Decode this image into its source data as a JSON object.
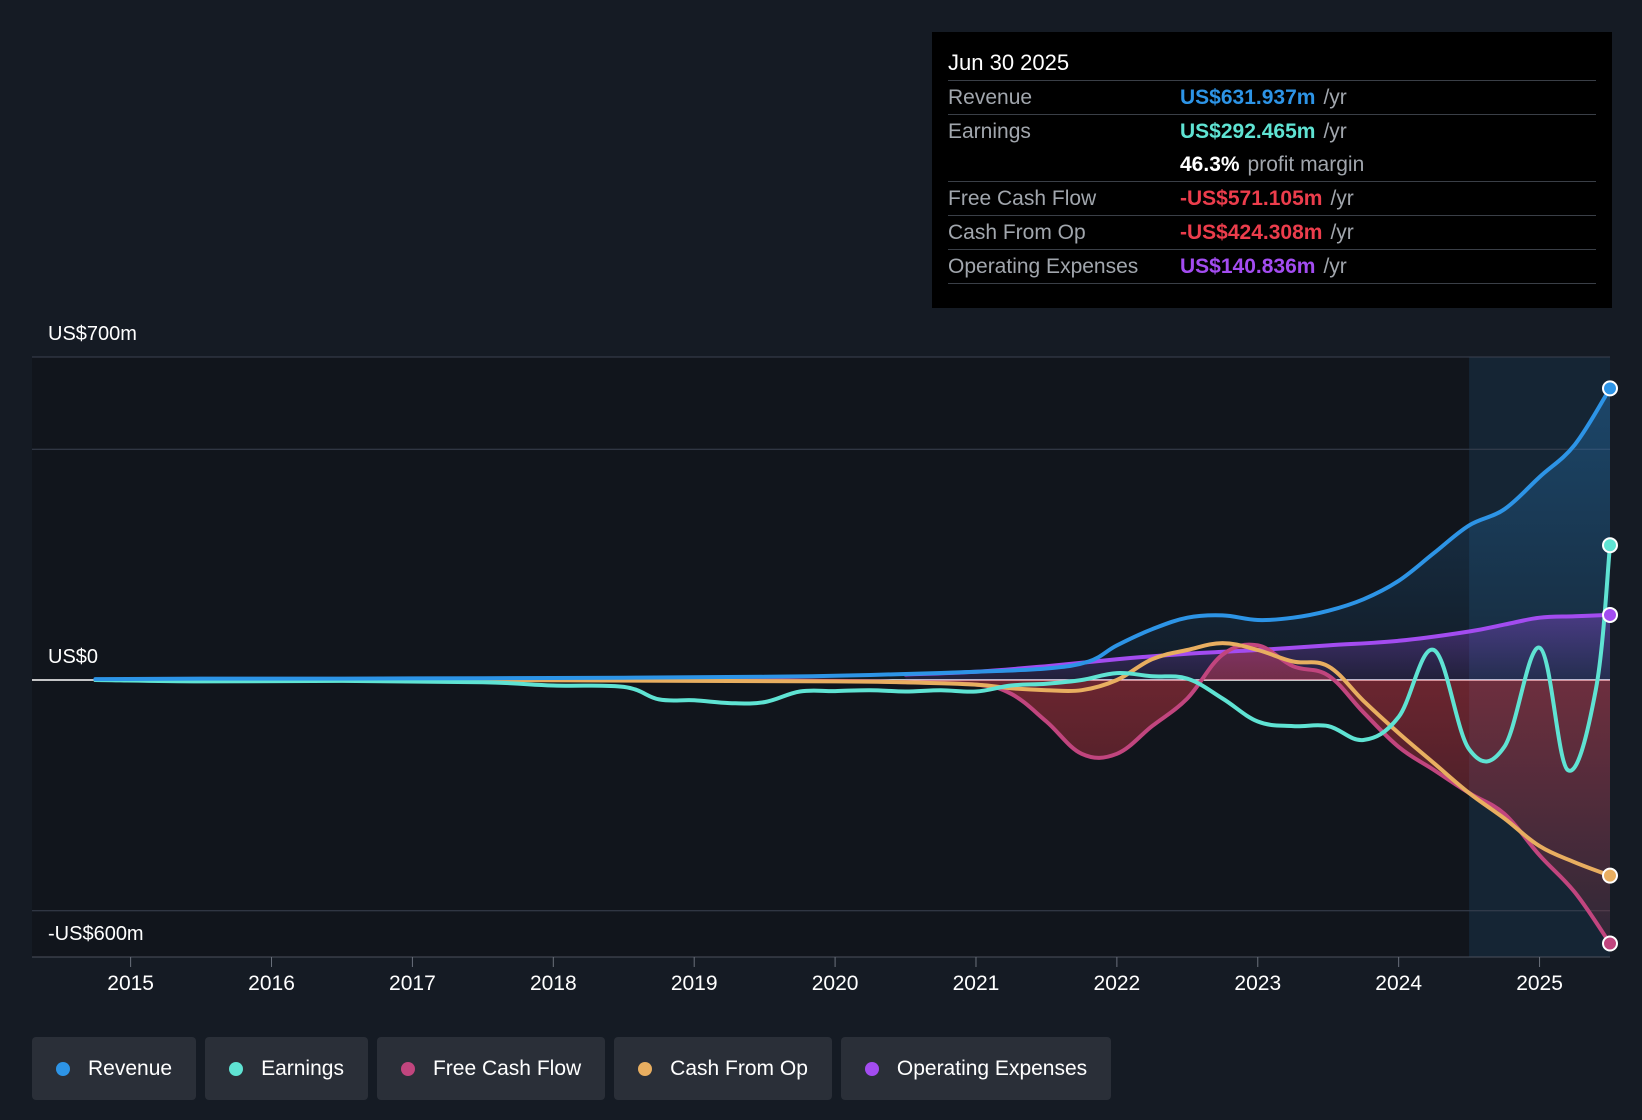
{
  "tooltip": {
    "date": "Jun 30 2025",
    "rows": [
      {
        "label": "Revenue",
        "value": "US$631.937m",
        "unit": "/yr",
        "color": "#2d94e6"
      },
      {
        "label": "Earnings",
        "value": "US$292.465m",
        "unit": "/yr",
        "color": "#5fe3d3"
      },
      {
        "label": "Free Cash Flow",
        "value": "-US$571.105m",
        "unit": "/yr",
        "color": "#ec3d4c"
      },
      {
        "label": "Cash From Op",
        "value": "-US$424.308m",
        "unit": "/yr",
        "color": "#ec3d4c"
      },
      {
        "label": "Operating Expenses",
        "value": "US$140.836m",
        "unit": "/yr",
        "color": "#a34cf0"
      }
    ],
    "profit_margin_value": "46.3%",
    "profit_margin_label": "profit margin"
  },
  "legend": [
    {
      "label": "Revenue",
      "color": "#2d94e6"
    },
    {
      "label": "Earnings",
      "color": "#5fe3d3"
    },
    {
      "label": "Free Cash Flow",
      "color": "#c1457e"
    },
    {
      "label": "Cash From Op",
      "color": "#e8ae60"
    },
    {
      "label": "Operating Expenses",
      "color": "#a34cf0"
    }
  ],
  "chart_data": {
    "type": "line",
    "title": "",
    "xlabel": "",
    "ylabel": "",
    "y_tick_labels": [
      {
        "value": 700,
        "label": "US$700m"
      },
      {
        "value": 0,
        "label": "US$0"
      },
      {
        "value": -600,
        "label": "-US$600m"
      }
    ],
    "ylim": [
      -600,
      700
    ],
    "xlim": [
      2014.3,
      2025.5
    ],
    "x_ticks": [
      "2015",
      "2016",
      "2017",
      "2018",
      "2019",
      "2020",
      "2021",
      "2022",
      "2023",
      "2024",
      "2025"
    ],
    "gridlines_y": [
      700,
      500,
      0,
      -500
    ],
    "highlight_from": 2024.5,
    "series": [
      {
        "name": "Revenue",
        "color": "#2d94e6",
        "x": [
          2014.75,
          2015.5,
          2016.5,
          2017.5,
          2018.5,
          2019.5,
          2020.0,
          2020.5,
          2021.0,
          2021.5,
          2021.8,
          2022.0,
          2022.25,
          2022.5,
          2022.75,
          2023.0,
          2023.25,
          2023.5,
          2023.75,
          2024.0,
          2024.25,
          2024.5,
          2024.75,
          2025.0,
          2025.25,
          2025.5
        ],
        "y": [
          2,
          3,
          3,
          4,
          5,
          7,
          9,
          13,
          18,
          25,
          40,
          75,
          110,
          135,
          140,
          130,
          135,
          150,
          175,
          215,
          275,
          335,
          370,
          440,
          510,
          632
        ]
      },
      {
        "name": "Earnings",
        "color": "#5fe3d3",
        "x": [
          2014.75,
          2015.5,
          2016.5,
          2017.5,
          2018.0,
          2018.5,
          2018.75,
          2019.0,
          2019.25,
          2019.5,
          2019.75,
          2020.0,
          2020.25,
          2020.5,
          2020.75,
          2021.0,
          2021.25,
          2021.5,
          2021.75,
          2022.0,
          2022.25,
          2022.5,
          2022.75,
          2023.0,
          2023.25,
          2023.5,
          2023.75,
          2024.0,
          2024.25,
          2024.5,
          2024.75,
          2025.0,
          2025.2,
          2025.4,
          2025.5
        ],
        "y": [
          0,
          -3,
          -2,
          -5,
          -12,
          -15,
          -42,
          -44,
          -50,
          -48,
          -25,
          -24,
          -22,
          -25,
          -22,
          -25,
          -12,
          -8,
          0,
          15,
          8,
          3,
          -40,
          -90,
          -100,
          -100,
          -130,
          -80,
          65,
          -150,
          -145,
          70,
          -195,
          -20,
          292
        ]
      },
      {
        "name": "Free Cash Flow",
        "color": "#c1457e",
        "x": [
          2014.75,
          2016.0,
          2017.5,
          2019.0,
          2020.0,
          2020.5,
          2021.0,
          2021.25,
          2021.5,
          2021.75,
          2022.0,
          2022.25,
          2022.5,
          2022.75,
          2023.0,
          2023.25,
          2023.5,
          2023.75,
          2024.0,
          2024.25,
          2024.5,
          2024.75,
          2025.0,
          2025.25,
          2025.5
        ],
        "y": [
          0,
          0,
          0,
          0,
          -2,
          -5,
          -10,
          -30,
          -90,
          -160,
          -160,
          -100,
          -40,
          55,
          75,
          30,
          10,
          -70,
          -145,
          -195,
          -245,
          -290,
          -380,
          -460,
          -571
        ]
      },
      {
        "name": "Cash From Op",
        "color": "#e8ae60",
        "x": [
          2014.75,
          2016.0,
          2017.5,
          2019.0,
          2020.0,
          2020.5,
          2021.0,
          2021.25,
          2021.5,
          2021.75,
          2022.0,
          2022.25,
          2022.5,
          2022.75,
          2023.0,
          2023.25,
          2023.5,
          2023.75,
          2024.0,
          2024.25,
          2024.5,
          2024.75,
          2025.0,
          2025.25,
          2025.5
        ],
        "y": [
          0,
          0,
          0,
          -2,
          -3,
          -5,
          -10,
          -18,
          -22,
          -22,
          0,
          45,
          65,
          80,
          65,
          40,
          30,
          -45,
          -115,
          -180,
          -245,
          -300,
          -360,
          -395,
          -424
        ]
      },
      {
        "name": "Operating Expenses",
        "color": "#a34cf0",
        "x": [
          2020.5,
          2021.0,
          2021.5,
          2022.0,
          2022.5,
          2023.0,
          2023.5,
          2024.0,
          2024.5,
          2024.75,
          2025.0,
          2025.25,
          2025.5
        ],
        "y": [
          12,
          18,
          30,
          45,
          57,
          65,
          75,
          85,
          105,
          120,
          135,
          138,
          141
        ]
      }
    ]
  }
}
